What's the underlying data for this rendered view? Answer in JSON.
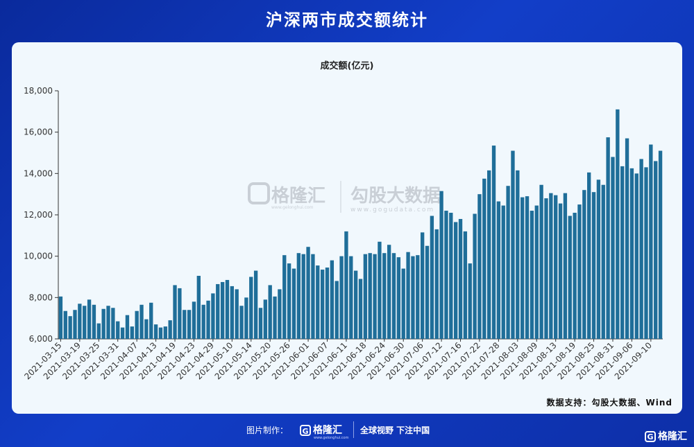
{
  "header": {
    "title": "沪深两市成交额统计"
  },
  "watermark": {
    "brand": "格隆汇",
    "brand_url": "www.gelonghui.com",
    "partner": "勾股大数据",
    "partner_url": "www.gogudata.com"
  },
  "source": "数据支持：勾股大数据、Wind",
  "footer": {
    "made_by": "图片制作：",
    "brand": "格隆汇",
    "brand_url": "www.gelonghui.com",
    "slogan": "全球视野 下注中国",
    "corner_brand": "格隆汇"
  },
  "colors": {
    "bar": "#1f6e99",
    "panel": "#f1f8fd",
    "background": "#123ec8"
  },
  "chart_data": {
    "type": "bar",
    "title": "成交额(亿元)",
    "xlabel": "",
    "ylabel": "",
    "ylim": [
      6000,
      18000
    ],
    "yticks": [
      6000,
      8000,
      10000,
      12000,
      14000,
      16000,
      18000
    ],
    "ytick_labels": [
      "6,000",
      "8,000",
      "10,000",
      "12,000",
      "14,000",
      "16,000",
      "18,000"
    ],
    "grid": false,
    "x_tick_labels": [
      "2021-03-15",
      "2021-03-19",
      "2021-03-25",
      "2021-03-31",
      "2021-04-07",
      "2021-04-13",
      "2021-04-19",
      "2021-04-23",
      "2021-04-29",
      "2021-05-10",
      "2021-05-14",
      "2021-05-20",
      "2021-05-26",
      "2021-06-01",
      "2021-06-07",
      "2021-06-11",
      "2021-06-18",
      "2021-06-24",
      "2021-06-30",
      "2021-07-06",
      "2021-07-12",
      "2021-07-16",
      "2021-07-22",
      "2021-07-28",
      "2021-08-03",
      "2021-08-09",
      "2021-08-13",
      "2021-08-19",
      "2021-08-25",
      "2021-08-31",
      "2021-09-06",
      "2021-09-10"
    ],
    "values": [
      8050,
      7350,
      7100,
      7400,
      7700,
      7600,
      7900,
      7650,
      6750,
      7450,
      7600,
      7500,
      6850,
      6550,
      7150,
      6600,
      7350,
      7650,
      6950,
      7750,
      6700,
      6550,
      6600,
      6900,
      8600,
      8450,
      7400,
      7400,
      7800,
      9050,
      7650,
      7850,
      8200,
      8650,
      8750,
      8850,
      8550,
      8400,
      7600,
      8000,
      9000,
      9300,
      7500,
      7900,
      8600,
      8050,
      8400,
      10050,
      9650,
      9400,
      10150,
      10100,
      10450,
      10100,
      9550,
      9350,
      9450,
      9800,
      8800,
      10000,
      11200,
      10000,
      9300,
      8900,
      10100,
      10150,
      10100,
      10700,
      10150,
      10550,
      10150,
      9950,
      9400,
      10200,
      10000,
      10050,
      11150,
      10500,
      11950,
      11300,
      13150,
      12200,
      12100,
      11650,
      11800,
      11200,
      9650,
      12050,
      13000,
      13750,
      14150,
      15350,
      12650,
      12450,
      13400,
      15100,
      14150,
      12850,
      12900,
      12200,
      12450,
      13450,
      12800,
      13050,
      12950,
      12550,
      13050,
      11950,
      12100,
      12500,
      13200,
      14050,
      13100,
      13700,
      13450,
      15750,
      14800,
      17100,
      14350,
      15700,
      14250,
      14000,
      14700,
      14300,
      15400,
      14600,
      15100
    ]
  }
}
